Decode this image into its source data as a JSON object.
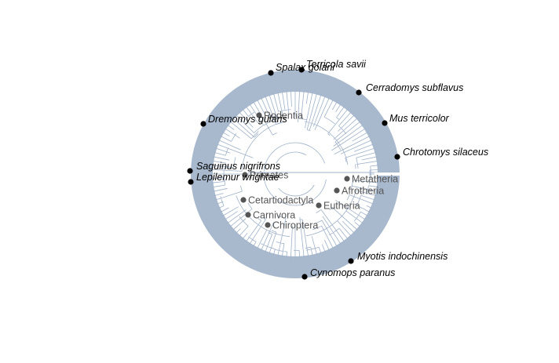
{
  "figure": {
    "colors": {
      "branch": "#9fb1c9",
      "tip_point": "#000000",
      "clade_point": "#555555",
      "clade_text": "#555555"
    },
    "clades": [
      "Rodentia",
      "Primates",
      "Cetartiodactyla",
      "Carnivora",
      "Chiroptera",
      "Eutheria",
      "Afrotheria",
      "Metatheria"
    ],
    "tips": [
      "Spalax golani",
      "Terricola savii",
      "Cerradomys subflavus",
      "Mus terricolor",
      "Chrotomys silaceus",
      "Dremomys gularis",
      "Saguinus nigrifrons",
      "Lepilemur wrightae",
      "Myotis indochinensis",
      "Cynomops paranus"
    ]
  }
}
